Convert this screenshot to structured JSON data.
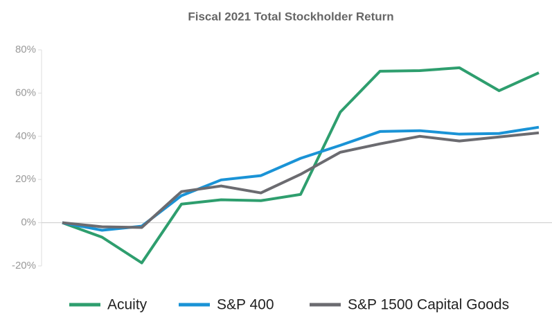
{
  "chart_data": {
    "type": "line",
    "title": "Fiscal 2021 Total Stockholder Return",
    "categories": [
      null,
      null,
      null,
      null,
      null,
      null,
      null,
      null,
      null,
      null,
      null,
      null,
      null
    ],
    "series": [
      {
        "name": "Acuity",
        "color": "#2e9e6e",
        "values": [
          0,
          -6.7,
          -18.6,
          8.6,
          10.6,
          10.2,
          13.1,
          51.2,
          70.1,
          70.4,
          71.7,
          61.1,
          69.4
        ]
      },
      {
        "name": "S&P 400",
        "color": "#1a93d6",
        "values": [
          0,
          -3.5,
          -1.6,
          12.5,
          19.8,
          21.8,
          29.8,
          35.8,
          42.2,
          42.6,
          41,
          41.3,
          44.2
        ]
      },
      {
        "name": "S&P 1500 Capital Goods",
        "color": "#6b6b70",
        "values": [
          0,
          -1.9,
          -2.2,
          14.4,
          17,
          13.8,
          22.4,
          32.6,
          36.5,
          40,
          37.8,
          39.7,
          41.6
        ]
      }
    ],
    "ylim": [
      -20,
      80
    ],
    "yticks": [
      {
        "value": -20,
        "label": "-20%"
      },
      {
        "value": 0,
        "label": "0%"
      },
      {
        "value": 20,
        "label": "20%"
      },
      {
        "value": 40,
        "label": "40%"
      },
      {
        "value": 60,
        "label": "60%"
      },
      {
        "value": 80,
        "label": "80%"
      }
    ],
    "legend": "bottom"
  }
}
